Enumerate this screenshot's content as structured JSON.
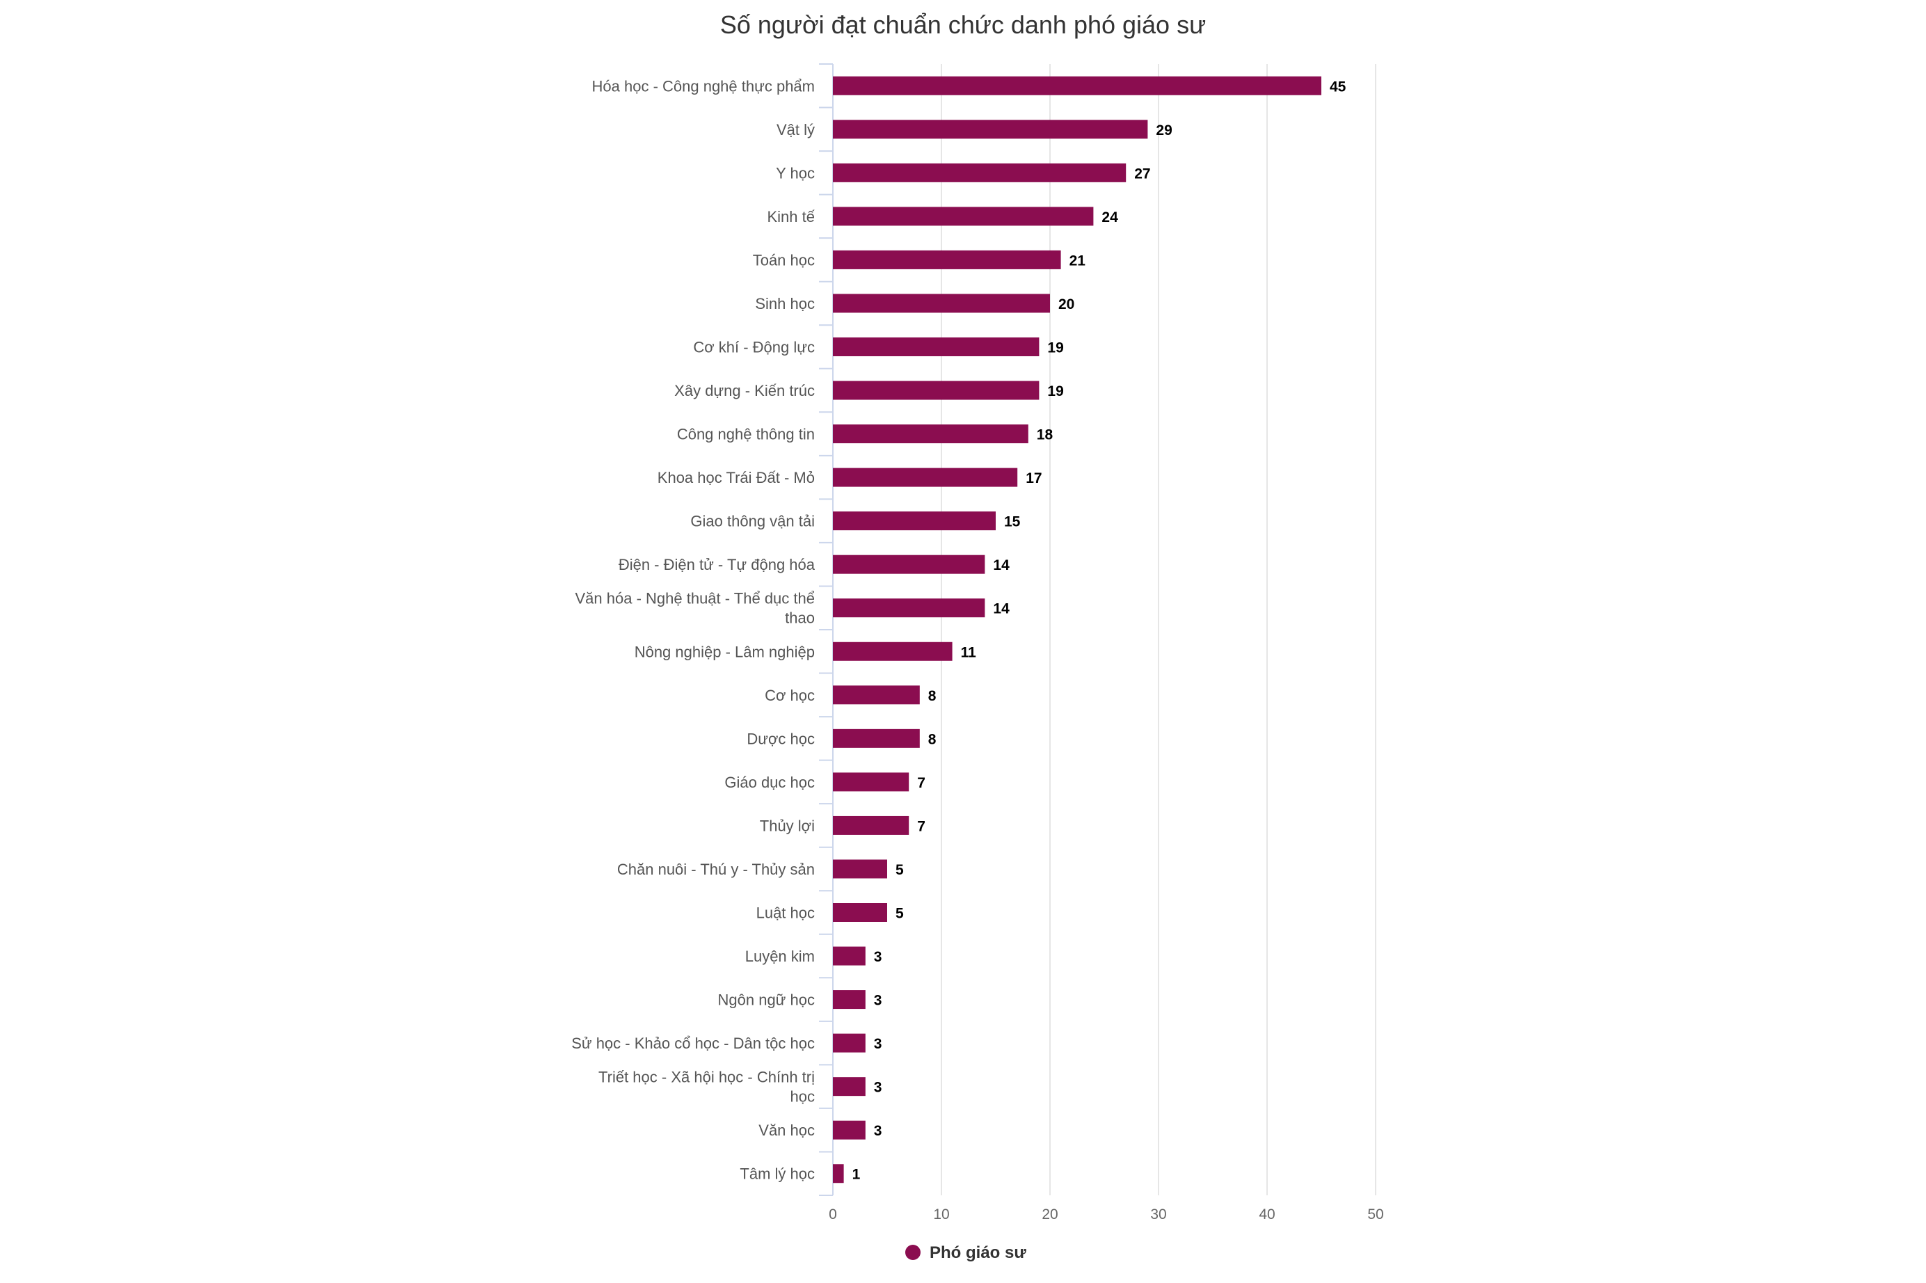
{
  "chart_data": {
    "type": "bar",
    "orientation": "horizontal",
    "title": "Số người đạt chuẩn chức danh phó giáo sư",
    "categories": [
      "Hóa học - Công nghệ thực phẩm",
      "Vật lý",
      "Y học",
      "Kinh tế",
      "Toán học",
      "Sinh học",
      "Cơ khí - Động lực",
      "Xây dựng - Kiến trúc",
      "Công nghệ thông tin",
      "Khoa học Trái Đất - Mỏ",
      "Giao thông vận tải",
      "Điện - Điện tử - Tự động hóa",
      "Văn hóa - Nghệ thuật - Thể dục thể thao",
      "Nông nghiệp - Lâm nghiệp",
      "Cơ học",
      "Dược học",
      "Giáo dục học",
      "Thủy lợi",
      "Chăn nuôi - Thú y - Thủy sản",
      "Luật học",
      "Luyện kim",
      "Ngôn ngữ học",
      "Sử học - Khảo cổ học - Dân tộc học",
      "Triết học - Xã hội học - Chính trị học",
      "Văn học",
      "Tâm lý học"
    ],
    "series": [
      {
        "name": "Phó giáo sư",
        "color": "#8b0d50",
        "values": [
          45,
          29,
          27,
          24,
          21,
          20,
          19,
          19,
          18,
          17,
          15,
          14,
          14,
          11,
          8,
          8,
          7,
          7,
          5,
          5,
          3,
          3,
          3,
          3,
          3,
          1
        ]
      }
    ],
    "xlim": [
      0,
      50
    ],
    "xticks": [
      0,
      10,
      20,
      30,
      40,
      50
    ],
    "grid": true,
    "data_labels": true,
    "legend_position": "bottom"
  }
}
